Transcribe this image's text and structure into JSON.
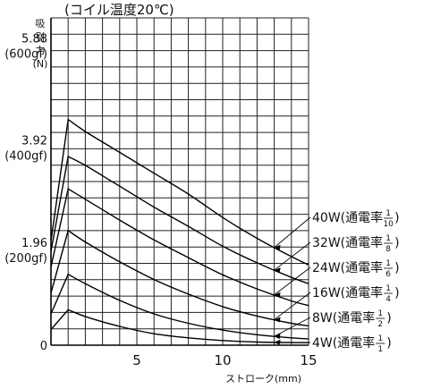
{
  "chart_data": {
    "type": "line",
    "title": "(コイル温度20℃)",
    "ylabel": [
      "吸",
      "引",
      "力",
      "(N)"
    ],
    "xlabel": "ストローク(mm)",
    "xlim": [
      0,
      15
    ],
    "ylim": [
      0,
      6.28
    ],
    "grid": true,
    "xticks": [
      {
        "value": 5,
        "label": "5"
      },
      {
        "value": 10,
        "label": "10"
      },
      {
        "value": 15,
        "label": "15"
      }
    ],
    "yticks": [
      {
        "value": 0,
        "label": [
          "0"
        ]
      },
      {
        "value": 1.96,
        "label": [
          "1.96",
          "(200gf)"
        ]
      },
      {
        "value": 3.92,
        "label": [
          "3.92",
          "(400gf)"
        ]
      },
      {
        "value": 5.88,
        "label": [
          "5.88",
          "(600gf)"
        ]
      }
    ],
    "series": [
      {
        "name": "40W",
        "num": "1",
        "den": "10",
        "x": [
          0,
          1,
          2,
          4,
          6,
          8,
          10,
          12,
          14,
          15
        ],
        "y": [
          2.0,
          4.33,
          4.1,
          3.7,
          3.3,
          2.9,
          2.45,
          2.05,
          1.7,
          1.54
        ]
      },
      {
        "name": "32W",
        "num": "1",
        "den": "8",
        "x": [
          0,
          1,
          2,
          4,
          6,
          8,
          10,
          12,
          14,
          15
        ],
        "y": [
          1.8,
          3.62,
          3.45,
          3.05,
          2.65,
          2.28,
          1.9,
          1.58,
          1.3,
          1.18
        ]
      },
      {
        "name": "24W",
        "num": "1",
        "den": "6",
        "x": [
          0,
          1,
          2,
          4,
          6,
          8,
          10,
          12,
          14,
          15
        ],
        "y": [
          1.5,
          3.0,
          2.8,
          2.4,
          2.02,
          1.68,
          1.35,
          1.08,
          0.85,
          0.76
        ]
      },
      {
        "name": "16W",
        "num": "1",
        "den": "4",
        "x": [
          0,
          1,
          2,
          4,
          6,
          8,
          10,
          12,
          14,
          15
        ],
        "y": [
          1.0,
          2.2,
          1.98,
          1.6,
          1.26,
          0.98,
          0.74,
          0.56,
          0.42,
          0.37
        ]
      },
      {
        "name": "8W",
        "num": "1",
        "den": "2",
        "x": [
          0,
          1,
          2,
          4,
          6,
          8,
          10,
          12,
          14,
          15
        ],
        "y": [
          0.6,
          1.36,
          1.18,
          0.86,
          0.6,
          0.42,
          0.29,
          0.2,
          0.14,
          0.12
        ]
      },
      {
        "name": "4W",
        "num": "1",
        "den": "1",
        "x": [
          0,
          1,
          2,
          4,
          6,
          8,
          10,
          12,
          14,
          15
        ],
        "y": [
          0.3,
          0.68,
          0.55,
          0.36,
          0.22,
          0.14,
          0.09,
          0.06,
          0.05,
          0.05
        ]
      }
    ],
    "legend_text": "通電率"
  }
}
